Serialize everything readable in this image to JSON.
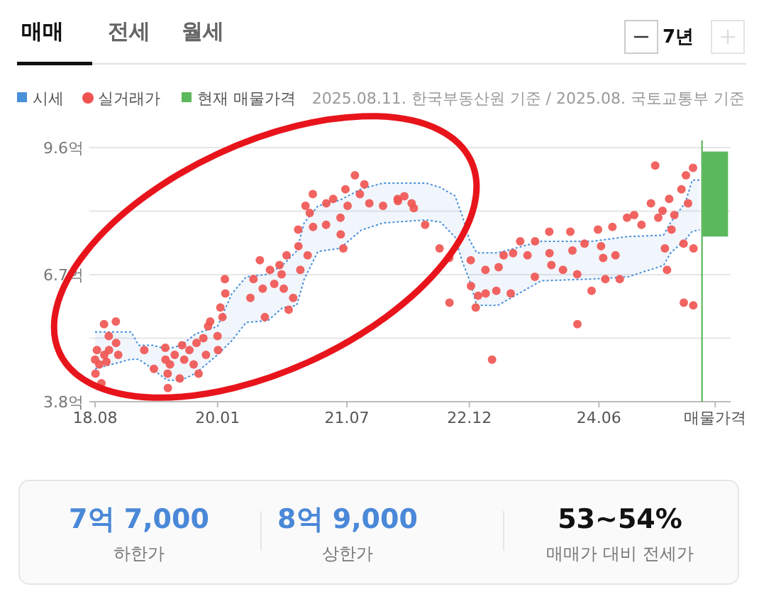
{
  "chart_data": {
    "type": "scatter",
    "annotations": [
      "매매",
      "전세",
      "월세",
      "7년",
      "2025.08.11. 한국부동산원 기준 / 2025.08. 국토교통부 기준",
      "7억 7,000",
      "하한가",
      "8억 9,000",
      "상한가",
      "53~54%",
      "매매가 대비 전세가"
    ],
    "series": [
      {
        "type": "line",
        "color": "#4a90d9",
        "x": [
          "2018-08",
          "2019-01",
          "2019-02",
          "2019-04",
          "2019-06",
          "2019-08",
          "2019-10",
          "2020-01",
          "2020-03",
          "2020-05",
          "2020-08",
          "2020-10",
          "2020-12",
          "2021-01",
          "2021-03",
          "2021-06",
          "2021-09",
          "2021-12",
          "2022-06",
          "2022-08",
          "2022-10",
          "2022-11",
          "2022-12",
          "2023-01",
          "2023-04",
          "2023-10",
          "2024-05",
          "2024-10",
          "2025-03",
          "2025-04",
          "2025-06",
          "2025-07",
          "2025-08"
        ],
        "values": [
          null,
          null,
          null,
          null,
          null,
          null,
          null,
          null,
          null,
          null,
          null,
          null,
          null,
          null,
          null,
          null,
          null,
          null,
          null,
          null,
          null,
          null,
          null,
          null,
          null,
          null,
          null,
          null,
          null,
          null,
          null,
          null,
          null
        ],
        "upper": [
          5.39,
          5.39,
          5.09,
          5.09,
          5.0,
          5.09,
          5.35,
          5.52,
          6.26,
          6.65,
          6.71,
          6.91,
          7.24,
          7.88,
          8.27,
          8.4,
          8.66,
          8.79,
          8.79,
          8.69,
          8.5,
          8.05,
          7.5,
          7.2,
          7.2,
          7.46,
          7.46,
          7.57,
          7.6,
          7.9,
          8.34,
          8.86,
          8.86
        ],
        "lower": [
          4.55,
          4.77,
          4.77,
          4.55,
          4.29,
          4.29,
          4.45,
          4.87,
          5.19,
          5.61,
          5.65,
          5.94,
          6.0,
          6.59,
          7.23,
          7.3,
          7.72,
          7.88,
          7.95,
          7.9,
          7.56,
          7.0,
          6.59,
          6.0,
          6.0,
          6.56,
          6.6,
          6.65,
          6.91,
          7.2,
          7.5,
          7.69,
          7.72
        ]
      },
      {
        "name": "시세",
        "type": "line",
        "color": "#4a90d9",
        "line_style": "dotted",
        "x": [
          "2018-08",
          "2019-01",
          "2019-02",
          "2019-04",
          "2019-06",
          "2019-08",
          "2019-10",
          "2020-01",
          "2020-03",
          "2020-05",
          "2020-08",
          "2020-10",
          "2020-12",
          "2021-01",
          "2021-03",
          "2021-06",
          "2021-09",
          "2021-12",
          "2022-06",
          "2022-08",
          "2022-10",
          "2022-11",
          "2022-12",
          "2023-01",
          "2023-04",
          "2023-10",
          "2024-05",
          "2024-10",
          "2025-03",
          "2025-04",
          "2025-06",
          "2025-07",
          "2025-08"
        ],
        "values": [
          5.39,
          5.39,
          5.09,
          5.09,
          5.0,
          5.09,
          5.35,
          5.52,
          6.26,
          6.65,
          6.71,
          6.91,
          7.24,
          7.88,
          8.27,
          8.4,
          8.66,
          8.79,
          8.79,
          8.69,
          8.5,
          8.05,
          7.5,
          7.2,
          7.2,
          7.46,
          7.46,
          7.57,
          7.6,
          7.9,
          8.34,
          8.86,
          8.86
        ],
        "marker": "none"
      },
      {
        "type": "line",
        "color": "#4a90d9",
        "line_style": "dotted",
        "x": [
          "2018-08",
          "2019-01",
          "2019-02",
          "2019-04",
          "2019-06",
          "2019-08",
          "2019-10",
          "2020-01",
          "2020-03",
          "2020-05",
          "2020-08",
          "2020-10",
          "2020-12",
          "2021-01",
          "2021-03",
          "2021-06",
          "2021-09",
          "2021-12",
          "2022-06",
          "2022-08",
          "2022-10",
          "2022-11",
          "2022-12",
          "2023-01",
          "2023-04",
          "2023-10",
          "2024-05",
          "2024-10",
          "2025-03",
          "2025-04",
          "2025-06",
          "2025-07",
          "2025-08"
        ],
        "values": [
          4.55,
          4.77,
          4.77,
          4.55,
          4.29,
          4.29,
          4.45,
          4.87,
          5.19,
          5.61,
          5.65,
          5.94,
          6.0,
          6.59,
          7.23,
          7.3,
          7.72,
          7.88,
          7.95,
          7.9,
          7.56,
          7.0,
          6.59,
          6.0,
          6.0,
          6.56,
          6.6,
          6.65,
          6.91,
          7.2,
          7.5,
          7.69,
          7.72
        ]
      },
      {
        "name": "실거래가",
        "marker": "circle",
        "color": "#ef5350",
        "x": [
          "2018-08-01",
          "2018-08-03",
          "2018-08-09",
          "2018-08-19",
          "2018-08-28",
          "2018-09-08",
          "2018-09-09",
          "2018-09-18",
          "2018-09-28",
          "2018-09-29",
          "2018-10-28",
          "2018-10-29",
          "2018-11-07",
          "2019-02-25",
          "2019-04-07",
          "2019-05-25",
          "2019-05-26",
          "2019-06-04",
          "2019-06-05",
          "2019-06-14",
          "2019-07-04",
          "2019-07-25",
          "2019-08-04",
          "2019-08-13",
          "2019-09-04",
          "2019-09-22",
          "2019-10-04",
          "2019-10-13",
          "2019-11-02",
          "2019-11-13",
          "2019-11-22",
          "2019-12-01",
          "2020-01-01",
          "2020-01-03",
          "2020-01-13",
          "2020-01-22",
          "2020-02-01",
          "2020-02-03",
          "2020-05-19",
          "2020-06-01",
          "2020-06-28",
          "2020-07-10",
          "2020-07-19",
          "2020-08-10",
          "2020-08-28",
          "2020-09-19",
          "2020-09-28",
          "2020-10-07",
          "2020-10-19",
          "2020-10-28",
          "2020-11-16",
          "2020-12-07",
          "2020-12-08",
          "2020-12-16",
          "2021-01-07",
          "2021-01-16",
          "2021-01-25",
          "2021-02-07",
          "2021-02-08",
          "2021-04-04",
          "2021-04-05",
          "2021-05-04",
          "2021-06-04",
          "2021-06-05",
          "2021-06-16",
          "2021-06-25",
          "2021-07-04",
          "2021-08-04",
          "2021-08-25",
          "2021-09-13",
          "2021-10-04",
          "2021-12-01",
          "2022-02-01",
          "2022-02-02",
          "2022-03-01",
          "2022-04-01",
          "2022-04-10",
          "2022-05-28",
          "2022-07-28",
          "2022-09-07",
          "2022-09-08",
          "2022-12-07",
          "2022-12-08",
          "2022-12-28",
          "2023-01-07",
          "2023-02-07",
          "2023-02-08",
          "2023-03-07",
          "2023-03-25",
          "2023-04-04",
          "2023-04-25",
          "2023-05-25",
          "2023-06-04",
          "2023-07-04",
          "2023-08-04",
          "2023-09-04",
          "2023-09-05",
          "2023-11-04",
          "2023-11-05",
          "2023-11-13",
          "2024-01-01",
          "2024-02-01",
          "2024-02-10",
          "2024-03-01",
          "2024-03-02",
          "2024-04-01",
          "2024-05-01",
          "2024-05-28",
          "2024-06-10",
          "2024-06-19",
          "2024-06-28",
          "2024-07-28",
          "2024-08-10",
          "2024-08-28",
          "2024-09-28",
          "2024-10-28",
          "2024-11-28",
          "2025-01-07",
          "2025-01-25",
          "2025-02-07",
          "2025-02-25",
          "2025-03-07",
          "2025-03-16",
          "2025-03-25",
          "2025-04-04",
          "2025-04-16",
          "2025-05-16",
          "2025-05-25",
          "2025-05-26",
          "2025-06-04",
          "2025-06-13",
          "2025-07-04",
          "2025-07-05",
          "2025-07-06"
        ],
        "values": [
          4.76,
          4.44,
          4.98,
          4.65,
          4.22,
          5.57,
          4.87,
          4.71,
          5.3,
          4.98,
          5.63,
          5.14,
          4.87,
          4.98,
          4.55,
          5.03,
          4.76,
          4.44,
          4.11,
          4.65,
          4.87,
          4.33,
          5.09,
          4.76,
          4.98,
          4.65,
          5.14,
          4.44,
          5.25,
          4.87,
          5.52,
          5.63,
          5.3,
          4.98,
          5.95,
          5.73,
          6.6,
          6.27,
          6.17,
          6.6,
          7.03,
          6.38,
          5.73,
          6.81,
          6.49,
          6.92,
          6.71,
          6.38,
          7.14,
          5.9,
          6.17,
          7.73,
          7.35,
          6.81,
          8.27,
          7.14,
          8.11,
          8.54,
          7.79,
          7.84,
          8.33,
          8.43,
          8.0,
          7.62,
          7.3,
          8.65,
          8.27,
          8.97,
          8.54,
          8.76,
          8.33,
          8.27,
          8.43,
          8.38,
          8.49,
          8.33,
          8.22,
          7.84,
          7.3,
          7.08,
          6.06,
          7.03,
          6.44,
          5.95,
          6.22,
          6.81,
          6.27,
          4.76,
          6.33,
          6.87,
          7.14,
          6.27,
          7.19,
          7.46,
          7.14,
          6.65,
          7.46,
          7.68,
          7.19,
          6.92,
          6.81,
          7.68,
          7.25,
          6.71,
          5.57,
          7.41,
          6.33,
          7.73,
          7.35,
          7.08,
          6.6,
          7.79,
          7.14,
          6.6,
          8.0,
          8.06,
          7.84,
          8.33,
          9.19,
          8.0,
          8.16,
          7.3,
          6.81,
          8.43,
          7.73,
          8.06,
          8.65,
          7.41,
          6.06,
          8.97,
          8.33,
          9.14,
          6.0,
          7.3
        ]
      },
      {
        "name": "현재 매물가격",
        "type": "bar",
        "color": "#5cb85c",
        "x": [
          "2025-10-06"
        ],
        "base": [
          7.57
        ],
        "values": [
          1.94
        ]
      }
    ],
    "xlim": [
      "2018-07-08",
      "2025-12-10"
    ],
    "xticks": [
      {
        "value": "2018-08",
        "label": "18.08"
      },
      {
        "value": "2020-01",
        "label": "20.01"
      },
      {
        "value": "2021-07",
        "label": "21.07"
      },
      {
        "value": "2022-12",
        "label": "22.12"
      },
      {
        "value": "2024-06",
        "label": "24.06"
      },
      {
        "value": "2025-10-06",
        "label": "매물가격"
      }
    ],
    "ylim": [
      3.8,
      9.6
    ],
    "yticks": [
      {
        "value": 3.8,
        "label": "3.8억"
      },
      {
        "value": 5.25,
        "label": null
      },
      {
        "value": 6.7,
        "label": "6.7억"
      },
      {
        "value": 8.15,
        "label": null
      },
      {
        "value": 9.6,
        "label": "9.6억"
      }
    ],
    "ref_lines": [
      {
        "axis": "x",
        "value": "2025-08-11",
        "color": "#4caf50"
      }
    ],
    "grid": "y",
    "legend": "top left"
  }
}
